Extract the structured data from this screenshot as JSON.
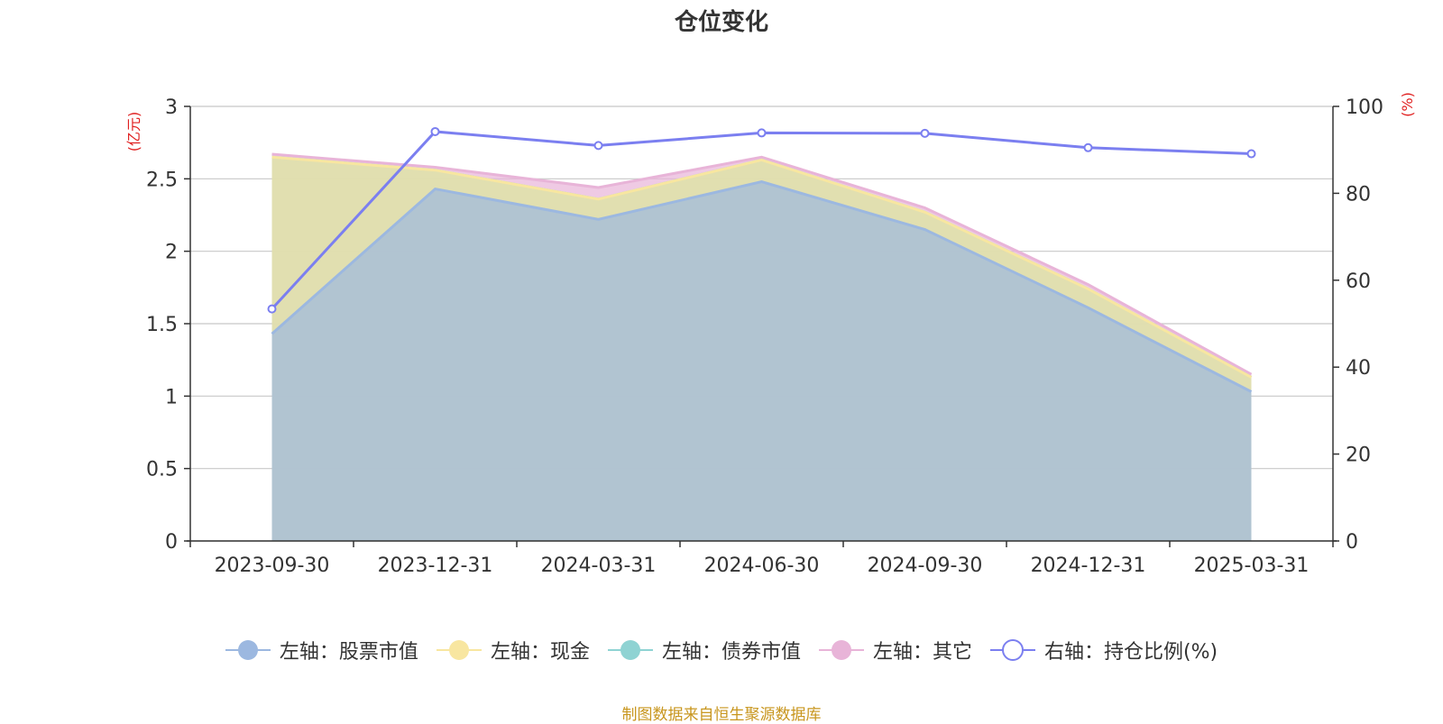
{
  "chart_data": {
    "type": "area",
    "title": "仓位变化",
    "categories": [
      "2023-09-30",
      "2023-12-31",
      "2024-03-31",
      "2024-06-30",
      "2024-09-30",
      "2024-12-31",
      "2025-03-31"
    ],
    "left_axis": {
      "unit": "(亿元)",
      "ylim": [
        0,
        3
      ],
      "ticks": [
        "0",
        "0.5",
        "1",
        "1.5",
        "2",
        "2.5",
        "3"
      ]
    },
    "right_axis": {
      "unit": "(%)",
      "ylim": [
        0,
        100
      ],
      "ticks": [
        "0",
        "20",
        "40",
        "60",
        "80",
        "100"
      ]
    },
    "series": [
      {
        "name": "左轴：股票市值",
        "type": "area",
        "axis": "left",
        "stacked": true,
        "color": "#9cb8e0",
        "values": [
          1.43,
          2.43,
          2.22,
          2.48,
          2.15,
          1.61,
          1.03
        ]
      },
      {
        "name": "左轴：现金",
        "type": "area",
        "axis": "left",
        "stacked": true,
        "color": "#f8e6a0",
        "values": [
          1.22,
          0.13,
          0.14,
          0.15,
          0.12,
          0.13,
          0.1
        ]
      },
      {
        "name": "左轴：债券市值",
        "type": "area",
        "axis": "left",
        "stacked": true,
        "color": "#8fd3d3",
        "values": [
          0,
          0,
          0,
          0,
          0,
          0,
          0
        ]
      },
      {
        "name": "左轴：其它",
        "type": "area",
        "axis": "left",
        "stacked": true,
        "color": "#e8b4d8",
        "values": [
          0.02,
          0.02,
          0.08,
          0.02,
          0.03,
          0.03,
          0.02
        ]
      },
      {
        "name": "右轴：持仓比例(%)",
        "type": "line",
        "axis": "right",
        "color": "#7b7ff0",
        "values": [
          53.4,
          94.2,
          91.0,
          93.9,
          93.8,
          90.5,
          89.1
        ]
      }
    ],
    "grid": true,
    "legend_position": "bottom"
  },
  "source_note": "制图数据来自恒生聚源数据库"
}
